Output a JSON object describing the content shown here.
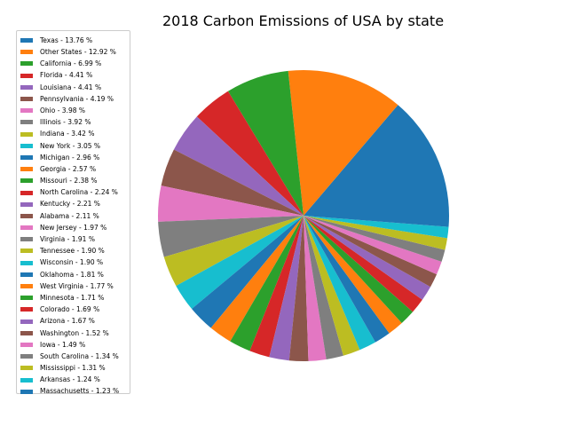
{
  "chart_data": {
    "type": "pie",
    "title": "2018 Carbon Emissions of USA by state",
    "legend_position": "top-left",
    "start_angle": 0,
    "direction": "counterclockwise",
    "slices": [
      {
        "label": "Texas - 13.76 %",
        "value": 13.76,
        "color": "#1f77b4"
      },
      {
        "label": "Other States - 12.92 %",
        "value": 12.92,
        "color": "#ff7f0e"
      },
      {
        "label": "California - 6.99 %",
        "value": 6.99,
        "color": "#2ca02c"
      },
      {
        "label": "Florida - 4.41 %",
        "value": 4.41,
        "color": "#d62728"
      },
      {
        "label": "Louisiana - 4.41 %",
        "value": 4.41,
        "color": "#9467bd"
      },
      {
        "label": "Pennsylvania - 4.19 %",
        "value": 4.19,
        "color": "#8c564b"
      },
      {
        "label": "Ohio - 3.98 %",
        "value": 3.98,
        "color": "#e377c2"
      },
      {
        "label": "Illinois - 3.92 %",
        "value": 3.92,
        "color": "#7f7f7f"
      },
      {
        "label": "Indiana - 3.42 %",
        "value": 3.42,
        "color": "#bcbd22"
      },
      {
        "label": "New York - 3.05 %",
        "value": 3.05,
        "color": "#17becf"
      },
      {
        "label": "Michigan - 2.96 %",
        "value": 2.96,
        "color": "#1f77b4"
      },
      {
        "label": "Georgia - 2.57 %",
        "value": 2.57,
        "color": "#ff7f0e"
      },
      {
        "label": "Missouri - 2.38 %",
        "value": 2.38,
        "color": "#2ca02c"
      },
      {
        "label": "North Carolina - 2.24 %",
        "value": 2.24,
        "color": "#d62728"
      },
      {
        "label": "Kentucky - 2.21 %",
        "value": 2.21,
        "color": "#9467bd"
      },
      {
        "label": "Alabama - 2.11 %",
        "value": 2.11,
        "color": "#8c564b"
      },
      {
        "label": "New Jersey - 1.97 %",
        "value": 1.97,
        "color": "#e377c2"
      },
      {
        "label": "Virginia - 1.91 %",
        "value": 1.91,
        "color": "#7f7f7f"
      },
      {
        "label": "Tennessee - 1.90 %",
        "value": 1.9,
        "color": "#bcbd22"
      },
      {
        "label": "Wisconsin - 1.90 %",
        "value": 1.9,
        "color": "#17becf"
      },
      {
        "label": "Oklahoma - 1.81 %",
        "value": 1.81,
        "color": "#1f77b4"
      },
      {
        "label": "West Virginia - 1.77 %",
        "value": 1.77,
        "color": "#ff7f0e"
      },
      {
        "label": "Minnesota - 1.71 %",
        "value": 1.71,
        "color": "#2ca02c"
      },
      {
        "label": "Colorado - 1.69 %",
        "value": 1.69,
        "color": "#d62728"
      },
      {
        "label": "Arizona - 1.67 %",
        "value": 1.67,
        "color": "#9467bd"
      },
      {
        "label": "Washington - 1.52 %",
        "value": 1.52,
        "color": "#8c564b"
      },
      {
        "label": "Iowa - 1.49 %",
        "value": 1.49,
        "color": "#e377c2"
      },
      {
        "label": "South Carolina - 1.34 %",
        "value": 1.34,
        "color": "#7f7f7f"
      },
      {
        "label": "Mississippi - 1.31 %",
        "value": 1.31,
        "color": "#bcbd22"
      },
      {
        "label": "Arkansas - 1.24 %",
        "value": 1.24,
        "color": "#17becf"
      },
      {
        "label": "Massachusetts - 1.23 %",
        "value": 1.23,
        "color": "#1f77b4"
      }
    ]
  }
}
